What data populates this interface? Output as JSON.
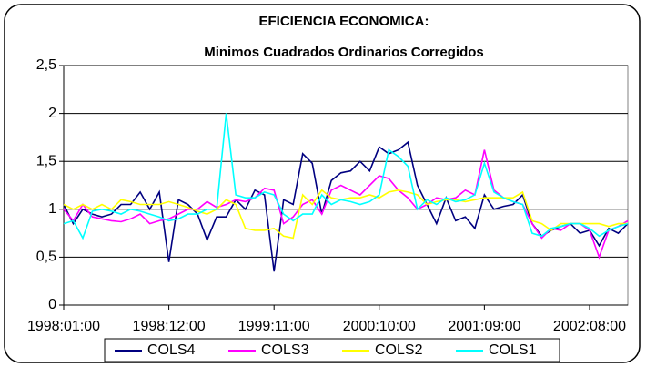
{
  "chart_data": {
    "type": "line",
    "title": "EFICIENCIA ECONOMICA:",
    "subtitle": "Minimos Cuadrados Ordinarios Corregidos",
    "categories": [
      "1998:01:00",
      null,
      null,
      null,
      null,
      null,
      null,
      null,
      null,
      null,
      null,
      "1998:12:00",
      null,
      null,
      null,
      null,
      null,
      null,
      null,
      null,
      null,
      null,
      "1999:11:00",
      null,
      null,
      null,
      null,
      null,
      null,
      null,
      null,
      null,
      null,
      "2000:10:00",
      null,
      null,
      null,
      null,
      null,
      null,
      null,
      null,
      null,
      null,
      "2001:09:00",
      null,
      null,
      null,
      null,
      null,
      null,
      null,
      null,
      null,
      null,
      "2002:08:00",
      null,
      null,
      null,
      null
    ],
    "series": [
      {
        "name": "COLS4",
        "color": "#000080",
        "values": [
          1.05,
          0.85,
          1.0,
          0.95,
          0.92,
          0.95,
          1.05,
          1.05,
          1.18,
          1.0,
          1.18,
          0.45,
          1.1,
          1.05,
          0.95,
          0.68,
          0.92,
          0.92,
          1.1,
          1.0,
          1.2,
          1.15,
          0.35,
          1.1,
          1.05,
          1.58,
          1.48,
          0.95,
          1.3,
          1.38,
          1.4,
          1.5,
          1.4,
          1.65,
          1.58,
          1.62,
          1.7,
          1.25,
          1.05,
          0.85,
          1.12,
          0.88,
          0.92,
          0.8,
          1.15,
          1.0,
          1.03,
          1.05,
          1.15,
          0.85,
          0.72,
          0.78,
          0.82,
          0.85,
          0.75,
          0.78,
          0.62,
          0.8,
          0.75,
          0.85
        ]
      },
      {
        "name": "COLS3",
        "color": "#ff00ff",
        "values": [
          1.0,
          0.88,
          1.05,
          0.92,
          0.9,
          0.88,
          0.87,
          0.9,
          0.95,
          0.85,
          0.88,
          0.9,
          0.95,
          1.0,
          1.0,
          1.08,
          1.02,
          1.05,
          1.1,
          1.08,
          1.12,
          1.22,
          1.2,
          0.85,
          0.92,
          1.05,
          1.1,
          0.95,
          1.2,
          1.25,
          1.2,
          1.15,
          1.25,
          1.35,
          1.32,
          1.2,
          1.12,
          1.0,
          1.05,
          1.12,
          1.1,
          1.12,
          1.2,
          1.15,
          1.62,
          1.2,
          1.12,
          1.08,
          1.05,
          0.85,
          0.7,
          0.8,
          0.78,
          0.85,
          0.85,
          0.78,
          0.5,
          0.78,
          0.82,
          0.88
        ]
      },
      {
        "name": "COLS2",
        "color": "#ffff00",
        "values": [
          1.05,
          1.0,
          1.05,
          1.0,
          1.05,
          1.0,
          1.1,
          1.08,
          1.05,
          1.05,
          1.05,
          1.08,
          1.05,
          1.02,
          0.98,
          0.95,
          1.0,
          1.1,
          1.05,
          0.8,
          0.78,
          0.78,
          0.8,
          0.72,
          0.7,
          1.15,
          1.05,
          1.2,
          1.12,
          1.1,
          1.12,
          1.12,
          1.15,
          1.12,
          1.18,
          1.2,
          1.18,
          1.15,
          1.05,
          1.08,
          1.1,
          1.1,
          1.08,
          1.1,
          1.12,
          1.12,
          1.12,
          1.12,
          1.18,
          0.88,
          0.85,
          0.78,
          0.85,
          0.85,
          0.85,
          0.85,
          0.85,
          0.82,
          0.85,
          0.85
        ]
      },
      {
        "name": "COLS1",
        "color": "#00ffff",
        "values": [
          0.85,
          0.88,
          0.7,
          0.98,
          1.0,
          0.98,
          0.95,
          1.0,
          0.98,
          0.95,
          0.92,
          0.88,
          0.9,
          0.95,
          0.95,
          1.0,
          1.0,
          2.0,
          1.15,
          1.12,
          1.12,
          1.18,
          1.15,
          0.95,
          0.88,
          0.95,
          0.95,
          1.15,
          1.05,
          1.1,
          1.08,
          1.05,
          1.08,
          1.15,
          1.62,
          1.55,
          1.45,
          1.0,
          1.1,
          1.05,
          1.12,
          1.08,
          1.1,
          1.15,
          1.48,
          1.18,
          1.12,
          1.08,
          1.05,
          0.75,
          0.72,
          0.8,
          0.82,
          0.85,
          0.85,
          0.8,
          0.72,
          0.78,
          0.82,
          0.85
        ]
      }
    ],
    "ylim": [
      0,
      2.5
    ],
    "yticks": [
      0,
      {
        "value": 0.5,
        "label": "0,5"
      },
      1,
      {
        "value": 1.5,
        "label": "1,5"
      },
      2,
      {
        "value": 2.5,
        "label": "2,5"
      }
    ],
    "grid": true,
    "legend": "bottom"
  }
}
